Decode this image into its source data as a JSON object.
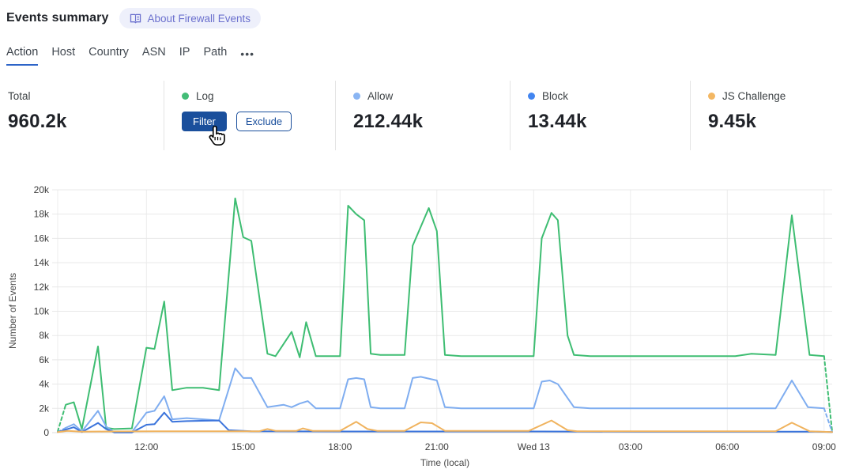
{
  "header": {
    "title": "Events summary",
    "about_badge": "About Firewall Events"
  },
  "tabs": {
    "items": [
      {
        "label": "Action",
        "active": true
      },
      {
        "label": "Host",
        "active": false
      },
      {
        "label": "Country",
        "active": false
      },
      {
        "label": "ASN",
        "active": false
      },
      {
        "label": "IP",
        "active": false
      },
      {
        "label": "Path",
        "active": false
      }
    ],
    "more_label": "•••"
  },
  "stats": {
    "cards": [
      {
        "label": "Total",
        "value": "960.2k"
      },
      {
        "label": "Log",
        "dot_color": "#43bd77",
        "buttons": [
          "Filter",
          "Exclude"
        ]
      },
      {
        "label": "Allow",
        "dot_color": "#8ab5f3",
        "value": "212.44k"
      },
      {
        "label": "Block",
        "dot_color": "#4285f0",
        "value": "13.44k"
      },
      {
        "label": "JS Challenge",
        "dot_color": "#f3b763",
        "value": "9.45k"
      }
    ],
    "card_widths": [
      207,
      217,
      221,
      228,
      195
    ]
  },
  "chart_data": {
    "type": "line",
    "title": "",
    "xlabel": "Time (local)",
    "ylabel": "Number of Events",
    "ylim_k": [
      0,
      20
    ],
    "y_ticks": [
      "0",
      "2k",
      "4k",
      "6k",
      "8k",
      "10k",
      "12k",
      "14k",
      "16k",
      "18k",
      "20k"
    ],
    "x_unit": "hours since chart start (~09:15 local)",
    "x_range": [
      0,
      24
    ],
    "x_ticks": [
      {
        "label": "12:00",
        "t": 2.75
      },
      {
        "label": "15:00",
        "t": 5.75
      },
      {
        "label": "18:00",
        "t": 8.75
      },
      {
        "label": "21:00",
        "t": 11.75
      },
      {
        "label": "Wed 13",
        "t": 14.75
      },
      {
        "label": "03:00",
        "t": 17.75
      },
      {
        "label": "06:00",
        "t": 20.75
      },
      {
        "label": "09:00",
        "t": 23.75
      }
    ],
    "grid": true,
    "legend_position": "stat cards above chart",
    "series": [
      {
        "name": "Log",
        "color": "#3ebd72",
        "unit": "k events",
        "dashed_head_until_t": 0.25,
        "dashed_tail_from_t": 23.75,
        "points": [
          [
            0,
            0.1
          ],
          [
            0.25,
            2.3
          ],
          [
            0.5,
            2.5
          ],
          [
            0.75,
            0.3
          ],
          [
            1.25,
            7.1
          ],
          [
            1.5,
            0.4
          ],
          [
            1.75,
            0.3
          ],
          [
            2.3,
            0.35
          ],
          [
            2.75,
            7.0
          ],
          [
            3.0,
            6.9
          ],
          [
            3.3,
            10.8
          ],
          [
            3.55,
            3.5
          ],
          [
            4.0,
            3.7
          ],
          [
            4.5,
            3.7
          ],
          [
            5.0,
            3.5
          ],
          [
            5.5,
            19.3
          ],
          [
            5.75,
            16.1
          ],
          [
            6.0,
            15.8
          ],
          [
            6.5,
            6.5
          ],
          [
            6.75,
            6.3
          ],
          [
            7.25,
            8.3
          ],
          [
            7.5,
            6.2
          ],
          [
            7.7,
            9.1
          ],
          [
            8.0,
            6.3
          ],
          [
            8.75,
            6.3
          ],
          [
            9.0,
            18.7
          ],
          [
            9.25,
            18.0
          ],
          [
            9.5,
            17.5
          ],
          [
            9.7,
            6.5
          ],
          [
            10.0,
            6.4
          ],
          [
            10.75,
            6.4
          ],
          [
            11.0,
            15.4
          ],
          [
            11.5,
            18.5
          ],
          [
            11.75,
            16.6
          ],
          [
            12.0,
            6.4
          ],
          [
            12.5,
            6.3
          ],
          [
            14.75,
            6.3
          ],
          [
            15.0,
            16.0
          ],
          [
            15.3,
            18.1
          ],
          [
            15.5,
            17.5
          ],
          [
            15.8,
            8.0
          ],
          [
            16.0,
            6.4
          ],
          [
            16.5,
            6.3
          ],
          [
            21.0,
            6.3
          ],
          [
            21.5,
            6.5
          ],
          [
            22.25,
            6.4
          ],
          [
            22.75,
            17.9
          ],
          [
            23.3,
            6.4
          ],
          [
            23.75,
            6.3
          ],
          [
            24,
            0.1
          ]
        ]
      },
      {
        "name": "Allow",
        "color": "#7fadf0",
        "unit": "k events",
        "dashed_head_until_t": 0.25,
        "dashed_tail_from_t": 23.75,
        "points": [
          [
            0,
            0.05
          ],
          [
            0.25,
            0.4
          ],
          [
            0.5,
            0.7
          ],
          [
            0.75,
            0.1
          ],
          [
            1.25,
            1.8
          ],
          [
            1.5,
            0.5
          ],
          [
            1.75,
            0.05
          ],
          [
            2.3,
            0.05
          ],
          [
            2.75,
            1.65
          ],
          [
            3.0,
            1.8
          ],
          [
            3.3,
            3.0
          ],
          [
            3.55,
            1.1
          ],
          [
            4.0,
            1.2
          ],
          [
            5.0,
            1.0
          ],
          [
            5.5,
            5.3
          ],
          [
            5.75,
            4.5
          ],
          [
            6.0,
            4.5
          ],
          [
            6.5,
            2.1
          ],
          [
            7.0,
            2.3
          ],
          [
            7.25,
            2.1
          ],
          [
            7.5,
            2.4
          ],
          [
            7.75,
            2.6
          ],
          [
            8.0,
            2.0
          ],
          [
            8.75,
            2.0
          ],
          [
            9.0,
            4.4
          ],
          [
            9.25,
            4.5
          ],
          [
            9.5,
            4.4
          ],
          [
            9.7,
            2.1
          ],
          [
            10.0,
            2.0
          ],
          [
            10.75,
            2.0
          ],
          [
            11.0,
            4.5
          ],
          [
            11.25,
            4.6
          ],
          [
            11.75,
            4.3
          ],
          [
            12.0,
            2.1
          ],
          [
            12.5,
            2.0
          ],
          [
            14.75,
            2.0
          ],
          [
            15.0,
            4.2
          ],
          [
            15.25,
            4.3
          ],
          [
            15.5,
            4.0
          ],
          [
            16.0,
            2.1
          ],
          [
            16.5,
            2.0
          ],
          [
            22.25,
            2.0
          ],
          [
            22.75,
            4.3
          ],
          [
            23.25,
            2.1
          ],
          [
            23.75,
            2.0
          ],
          [
            24,
            0.05
          ]
        ]
      },
      {
        "name": "Block",
        "color": "#3b74dc",
        "unit": "k events",
        "points": [
          [
            0,
            0.05
          ],
          [
            0.5,
            0.45
          ],
          [
            0.75,
            0.05
          ],
          [
            1.25,
            0.8
          ],
          [
            1.5,
            0.3
          ],
          [
            1.75,
            0.02
          ],
          [
            2.3,
            0.02
          ],
          [
            2.75,
            0.65
          ],
          [
            3.0,
            0.7
          ],
          [
            3.3,
            1.65
          ],
          [
            3.55,
            0.9
          ],
          [
            4.0,
            0.95
          ],
          [
            5.0,
            1.0
          ],
          [
            5.3,
            0.2
          ],
          [
            6.0,
            0.12
          ],
          [
            9.0,
            0.1
          ],
          [
            12.0,
            0.1
          ],
          [
            15.0,
            0.1
          ],
          [
            18.0,
            0.08
          ],
          [
            21.0,
            0.08
          ],
          [
            23.5,
            0.08
          ],
          [
            24,
            0.05
          ]
        ]
      },
      {
        "name": "JS Challenge",
        "color": "#f0b35e",
        "unit": "k events",
        "points": [
          [
            0,
            0.05
          ],
          [
            0.3,
            0.15
          ],
          [
            0.75,
            0.08
          ],
          [
            1.5,
            0.1
          ],
          [
            3.0,
            0.12
          ],
          [
            5.0,
            0.12
          ],
          [
            6.25,
            0.12
          ],
          [
            6.5,
            0.3
          ],
          [
            6.75,
            0.15
          ],
          [
            7.4,
            0.15
          ],
          [
            7.6,
            0.35
          ],
          [
            7.9,
            0.15
          ],
          [
            8.75,
            0.15
          ],
          [
            9.25,
            0.9
          ],
          [
            9.6,
            0.3
          ],
          [
            9.9,
            0.15
          ],
          [
            10.75,
            0.15
          ],
          [
            11.25,
            0.85
          ],
          [
            11.6,
            0.78
          ],
          [
            12.0,
            0.15
          ],
          [
            14.6,
            0.15
          ],
          [
            15.3,
            1.0
          ],
          [
            15.8,
            0.2
          ],
          [
            16.1,
            0.12
          ],
          [
            22.25,
            0.12
          ],
          [
            22.75,
            0.82
          ],
          [
            23.3,
            0.12
          ],
          [
            24,
            0.05
          ]
        ]
      }
    ]
  }
}
